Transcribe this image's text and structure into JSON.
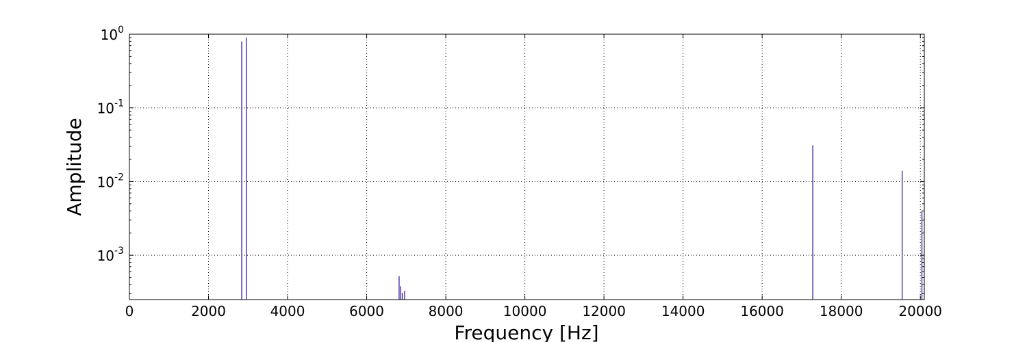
{
  "chart_data": {
    "type": "bar",
    "title": "",
    "xlabel": "Frequency [Hz]",
    "ylabel": "Amplitude",
    "x_scale": "linear",
    "y_scale": "log",
    "xlim": [
      0,
      20100
    ],
    "ylim": [
      0.00025,
      1
    ],
    "grid": true,
    "x_ticks": [
      0,
      2000,
      4000,
      6000,
      8000,
      10000,
      12000,
      14000,
      16000,
      18000,
      20000
    ],
    "x_tick_labels": [
      "0",
      "2000",
      "4000",
      "6000",
      "8000",
      "10000",
      "12000",
      "14000",
      "16000",
      "18000",
      "20000"
    ],
    "y_ticks": [
      {
        "value": 0.001,
        "base": "10",
        "exp": "-3"
      },
      {
        "value": 0.01,
        "base": "10",
        "exp": "-2"
      },
      {
        "value": 0.1,
        "base": "10",
        "exp": "-1"
      },
      {
        "value": 1,
        "base": "10",
        "exp": "0"
      }
    ],
    "line_color": "#3a1a9e",
    "series": [
      {
        "x": [
          2840,
          2960,
          6820,
          6860,
          6900,
          6960,
          17280,
          19540,
          20040
        ],
        "values": [
          0.8,
          0.9,
          0.00052,
          0.00038,
          0.00031,
          0.00033,
          0.031,
          0.014,
          0.004
        ]
      }
    ]
  }
}
